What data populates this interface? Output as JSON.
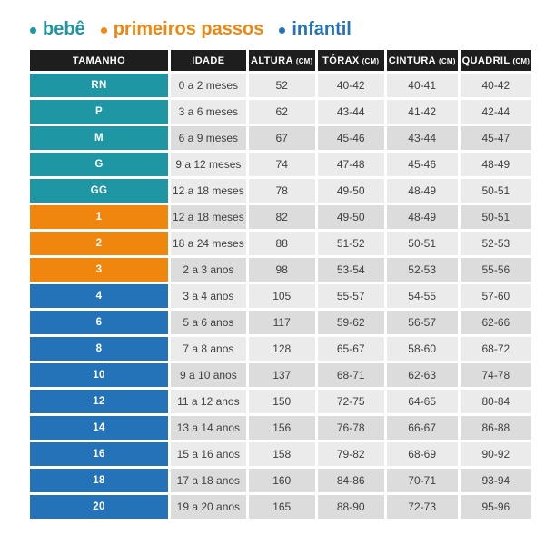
{
  "colors": {
    "bebe": "#1E96A4",
    "primeiros_passos": "#F1860F",
    "infantil": "#2473B8",
    "header_bg": "#1E1E1E",
    "row_light": "#EBEBEB",
    "row_dark": "#DCDCDD",
    "data_text": "#3F3F3F"
  },
  "legend": {
    "items": [
      {
        "label": "bebê",
        "group": "bebe",
        "color": "#1E96A4"
      },
      {
        "label": "primeiros passos",
        "group": "primeiros_passos",
        "color": "#F1860F"
      },
      {
        "label": "infantil",
        "group": "infantil",
        "color": "#2473B8"
      }
    ]
  },
  "table": {
    "columns": [
      {
        "key": "tamanho",
        "label": "TAMANHO",
        "unit": ""
      },
      {
        "key": "idade",
        "label": "IDADE",
        "unit": ""
      },
      {
        "key": "altura",
        "label": "ALTURA",
        "unit": "(CM)"
      },
      {
        "key": "torax",
        "label": "TÓRAX",
        "unit": "(CM)"
      },
      {
        "key": "cintura",
        "label": "CINTURA",
        "unit": "(CM)"
      },
      {
        "key": "quadril",
        "label": "QUADRIL",
        "unit": "(CM)"
      }
    ],
    "rows": [
      {
        "size": "RN",
        "group": "bebe",
        "age": "0 a 2 meses",
        "height": "52",
        "chest": "40-42",
        "waist": "40-41",
        "hip": "40-42",
        "shaded": false
      },
      {
        "size": "P",
        "group": "bebe",
        "age": "3 a 6 meses",
        "height": "62",
        "chest": "43-44",
        "waist": "41-42",
        "hip": "42-44",
        "shaded": false
      },
      {
        "size": "M",
        "group": "bebe",
        "age": "6 a 9 meses",
        "height": "67",
        "chest": "45-46",
        "waist": "43-44",
        "hip": "45-47",
        "shaded": true
      },
      {
        "size": "G",
        "group": "bebe",
        "age": "9 a 12 meses",
        "height": "74",
        "chest": "47-48",
        "waist": "45-46",
        "hip": "48-49",
        "shaded": false
      },
      {
        "size": "GG",
        "group": "bebe",
        "age": "12 a 18 meses",
        "height": "78",
        "chest": "49-50",
        "waist": "48-49",
        "hip": "50-51",
        "shaded": false
      },
      {
        "size": "1",
        "group": "primeiros_passos",
        "age": "12 a 18 meses",
        "height": "82",
        "chest": "49-50",
        "waist": "48-49",
        "hip": "50-51",
        "shaded": true
      },
      {
        "size": "2",
        "group": "primeiros_passos",
        "age": "18 a 24 meses",
        "height": "88",
        "chest": "51-52",
        "waist": "50-51",
        "hip": "52-53",
        "shaded": false
      },
      {
        "size": "3",
        "group": "primeiros_passos",
        "age": "2 a 3 anos",
        "height": "98",
        "chest": "53-54",
        "waist": "52-53",
        "hip": "55-56",
        "shaded": true
      },
      {
        "size": "4",
        "group": "infantil",
        "age": "3 a 4 anos",
        "height": "105",
        "chest": "55-57",
        "waist": "54-55",
        "hip": "57-60",
        "shaded": false
      },
      {
        "size": "6",
        "group": "infantil",
        "age": "5 a 6 anos",
        "height": "117",
        "chest": "59-62",
        "waist": "56-57",
        "hip": "62-66",
        "shaded": true
      },
      {
        "size": "8",
        "group": "infantil",
        "age": "7 a 8 anos",
        "height": "128",
        "chest": "65-67",
        "waist": "58-60",
        "hip": "68-72",
        "shaded": false
      },
      {
        "size": "10",
        "group": "infantil",
        "age": "9 a 10 anos",
        "height": "137",
        "chest": "68-71",
        "waist": "62-63",
        "hip": "74-78",
        "shaded": true
      },
      {
        "size": "12",
        "group": "infantil",
        "age": "11 a 12 anos",
        "height": "150",
        "chest": "72-75",
        "waist": "64-65",
        "hip": "80-84",
        "shaded": false
      },
      {
        "size": "14",
        "group": "infantil",
        "age": "13 a 14 anos",
        "height": "156",
        "chest": "76-78",
        "waist": "66-67",
        "hip": "86-88",
        "shaded": true
      },
      {
        "size": "16",
        "group": "infantil",
        "age": "15 a 16 anos",
        "height": "158",
        "chest": "79-82",
        "waist": "68-69",
        "hip": "90-92",
        "shaded": false
      },
      {
        "size": "18",
        "group": "infantil",
        "age": "17 a 18 anos",
        "height": "160",
        "chest": "84-86",
        "waist": "70-71",
        "hip": "93-94",
        "shaded": true
      },
      {
        "size": "20",
        "group": "infantil",
        "age": "19 a 20 anos",
        "height": "165",
        "chest": "88-90",
        "waist": "72-73",
        "hip": "95-96",
        "shaded": true
      }
    ]
  },
  "chart_data": {
    "type": "table",
    "title": "",
    "legend": [
      "bebê",
      "primeiros passos",
      "infantil"
    ],
    "legend_position": "top",
    "columns": [
      "TAMANHO",
      "IDADE",
      "ALTURA (CM)",
      "TÓRAX (CM)",
      "CINTURA (CM)",
      "QUADRIL (CM)"
    ],
    "rows": [
      [
        "RN",
        "0 a 2 meses",
        52,
        "40-42",
        "40-41",
        "40-42"
      ],
      [
        "P",
        "3 a 6 meses",
        62,
        "43-44",
        "41-42",
        "42-44"
      ],
      [
        "M",
        "6 a 9 meses",
        67,
        "45-46",
        "43-44",
        "45-47"
      ],
      [
        "G",
        "9 a 12 meses",
        74,
        "47-48",
        "45-46",
        "48-49"
      ],
      [
        "GG",
        "12 a 18 meses",
        78,
        "49-50",
        "48-49",
        "50-51"
      ],
      [
        "1",
        "12 a 18 meses",
        82,
        "49-50",
        "48-49",
        "50-51"
      ],
      [
        "2",
        "18 a 24 meses",
        88,
        "51-52",
        "50-51",
        "52-53"
      ],
      [
        "3",
        "2 a 3 anos",
        98,
        "53-54",
        "52-53",
        "55-56"
      ],
      [
        "4",
        "3 a 4 anos",
        105,
        "55-57",
        "54-55",
        "57-60"
      ],
      [
        "6",
        "5 a 6 anos",
        117,
        "59-62",
        "56-57",
        "62-66"
      ],
      [
        "8",
        "7 a 8 anos",
        128,
        "65-67",
        "58-60",
        "68-72"
      ],
      [
        "10",
        "9 a 10 anos",
        137,
        "68-71",
        "62-63",
        "74-78"
      ],
      [
        "12",
        "11 a 12 anos",
        150,
        "72-75",
        "64-65",
        "80-84"
      ],
      [
        "14",
        "13 a 14 anos",
        156,
        "76-78",
        "66-67",
        "86-88"
      ],
      [
        "16",
        "15 a 16 anos",
        158,
        "79-82",
        "68-69",
        "90-92"
      ],
      [
        "18",
        "17 a 18 anos",
        160,
        "84-86",
        "70-71",
        "93-94"
      ],
      [
        "20",
        "19 a 20 anos",
        165,
        "88-90",
        "72-73",
        "95-96"
      ]
    ]
  }
}
